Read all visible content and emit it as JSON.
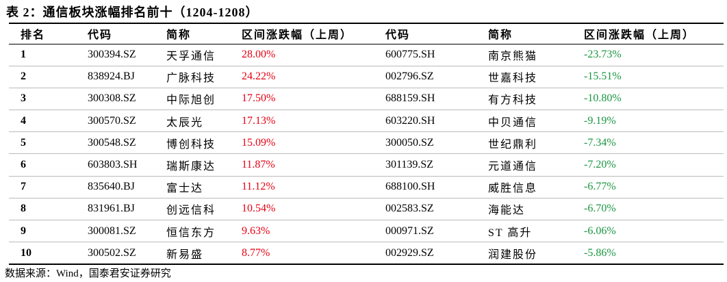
{
  "title": "表 2：通信板块涨幅排名前十（1204-1208）",
  "table": {
    "header": [
      "排名",
      "代码",
      "简称",
      "区间涨跌幅（上周）",
      "代码",
      "简称",
      "区间涨跌幅（上周）"
    ],
    "rows": [
      [
        "1",
        "300394.SZ",
        "天孚通信",
        "28.00%",
        "600775.SH",
        "南京熊猫",
        "-23.73%"
      ],
      [
        "2",
        "838924.BJ",
        "广脉科技",
        "24.22%",
        "002796.SZ",
        "世嘉科技",
        "-15.51%"
      ],
      [
        "3",
        "300308.SZ",
        "中际旭创",
        "17.50%",
        "688159.SH",
        "有方科技",
        "-10.80%"
      ],
      [
        "4",
        "300570.SZ",
        "太辰光",
        "17.13%",
        "603220.SH",
        "中贝通信",
        "-9.19%"
      ],
      [
        "5",
        "300548.SZ",
        "博创科技",
        "15.09%",
        "300050.SZ",
        "世纪鼎利",
        "-7.34%"
      ],
      [
        "6",
        "603803.SH",
        "瑞斯康达",
        "11.87%",
        "301139.SZ",
        "元道通信",
        "-7.20%"
      ],
      [
        "7",
        "835640.BJ",
        "富士达",
        "11.12%",
        "688100.SH",
        "威胜信息",
        "-6.77%"
      ],
      [
        "8",
        "831961.BJ",
        "创远信科",
        "10.54%",
        "002583.SZ",
        "海能达",
        "-6.70%"
      ],
      [
        "9",
        "300081.SZ",
        "恒信东方",
        "9.63%",
        "000971.SZ",
        "ST 高升",
        "-6.06%"
      ],
      [
        "10",
        "300502.SZ",
        "新易盛",
        "8.77%",
        "002929.SZ",
        "润建股份",
        "-5.86%"
      ]
    ]
  },
  "source": "数据来源：Wind，国泰君安证券研究"
}
